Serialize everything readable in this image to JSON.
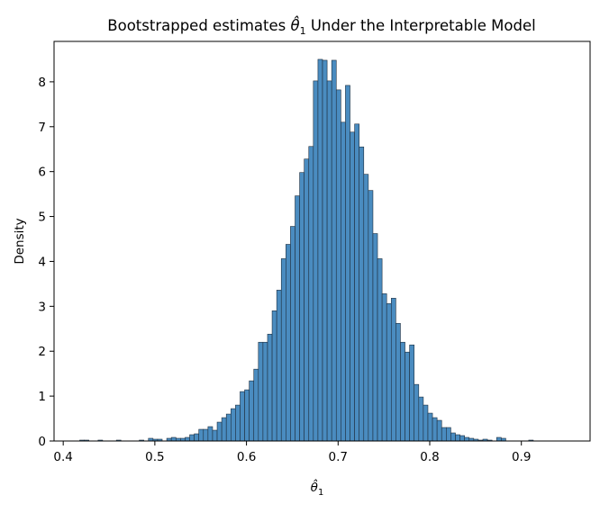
{
  "chart_data": {
    "type": "bar",
    "title_prefix": "Bootstrapped estimates ",
    "title_suffix": " Under the Interpretable Model",
    "xlabel": "θ̂",
    "xlabel_subscript": "1",
    "ylabel": "Density",
    "xlim": [
      0.39,
      0.975
    ],
    "ylim": [
      0,
      8.9
    ],
    "xticks": [
      0.4,
      0.5,
      0.6,
      0.7,
      0.8,
      0.9
    ],
    "xtick_labels": [
      "0.4",
      "0.5",
      "0.6",
      "0.7",
      "0.8",
      "0.9"
    ],
    "yticks": [
      0,
      1,
      2,
      3,
      4,
      5,
      6,
      7,
      8
    ],
    "ytick_labels": [
      "0",
      "1",
      "2",
      "3",
      "4",
      "5",
      "6",
      "7",
      "8"
    ],
    "bin_width": 0.005,
    "bin_start": 0.408,
    "bar_color": "#4a8cc0",
    "edge_color": "#1f2f3f",
    "grid": false,
    "values": [
      0.0,
      0.0,
      0.02,
      0.02,
      0.0,
      0.0,
      0.02,
      0.0,
      0.0,
      0.0,
      0.02,
      0.0,
      0.0,
      0.0,
      0.0,
      0.02,
      0.0,
      0.06,
      0.04,
      0.04,
      0.0,
      0.06,
      0.08,
      0.06,
      0.06,
      0.08,
      0.14,
      0.16,
      0.26,
      0.26,
      0.32,
      0.24,
      0.42,
      0.52,
      0.6,
      0.72,
      0.8,
      1.1,
      1.14,
      1.34,
      1.6,
      2.2,
      2.2,
      2.38,
      2.9,
      3.36,
      4.06,
      4.38,
      4.78,
      5.46,
      5.98,
      6.28,
      6.56,
      8.02,
      8.5,
      8.48,
      8.02,
      8.48,
      7.82,
      7.1,
      7.92,
      6.88,
      7.06,
      6.55,
      5.94,
      5.58,
      4.62,
      4.06,
      3.28,
      3.06,
      3.18,
      2.62,
      2.2,
      1.98,
      2.14,
      1.26,
      0.98,
      0.8,
      0.62,
      0.52,
      0.46,
      0.3,
      0.3,
      0.18,
      0.14,
      0.12,
      0.08,
      0.06,
      0.04,
      0.02,
      0.04,
      0.02,
      0.0,
      0.08,
      0.06,
      0.0,
      0.0,
      0.0,
      0.0,
      0.0,
      0.02
    ]
  }
}
